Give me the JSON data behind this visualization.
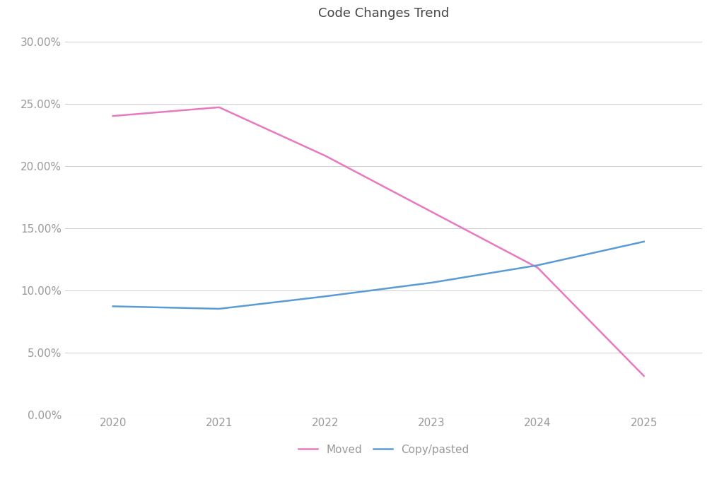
{
  "title": "Code Changes Trend",
  "title_fontsize": 13,
  "background_color": "#ffffff",
  "plot_bg_color": "#ffffff",
  "grid_color": "#d0d0d0",
  "x_years": [
    2020,
    2021,
    2022,
    2023,
    2024,
    2025
  ],
  "moved": [
    0.24,
    0.247,
    0.208,
    0.163,
    0.118,
    0.031
  ],
  "copy_pasted": [
    0.087,
    0.085,
    0.095,
    0.106,
    0.12,
    0.139
  ],
  "moved_color": "#e879c0",
  "copy_pasted_color": "#5b9bd5",
  "ylim": [
    0.0,
    0.31
  ],
  "yticks": [
    0.0,
    0.05,
    0.1,
    0.15,
    0.2,
    0.25,
    0.3
  ],
  "legend_labels": [
    "Moved",
    "Copy/pasted"
  ],
  "line_width": 1.8,
  "tick_label_color": "#999999",
  "tick_label_size": 11,
  "title_color": "#444444"
}
